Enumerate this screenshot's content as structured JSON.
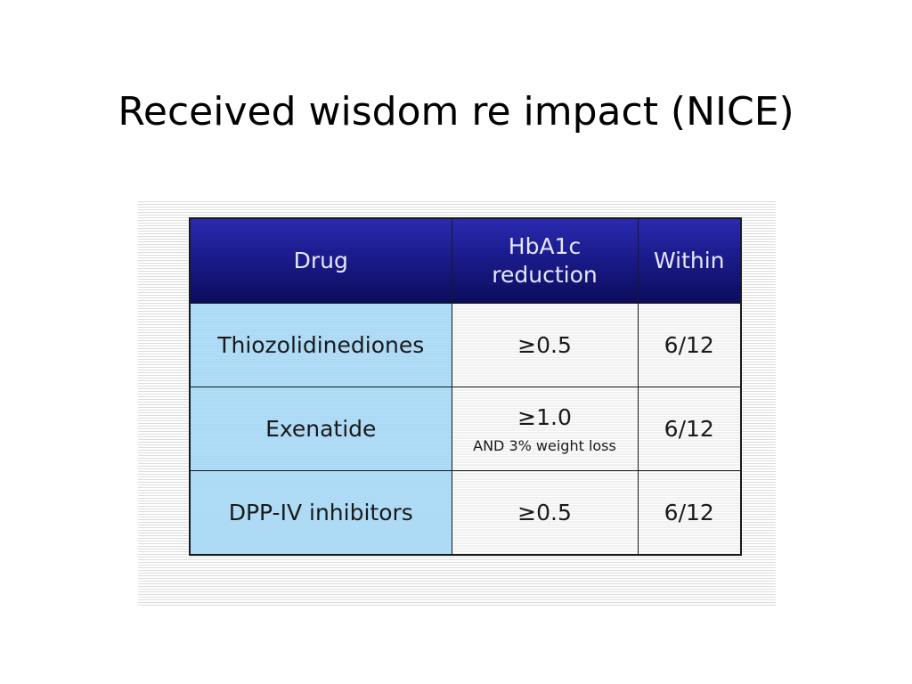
{
  "slide": {
    "title": "Received wisdom re impact (NICE)"
  },
  "table": {
    "headers": {
      "drug": "Drug",
      "hba1c_line1": "HbA1c",
      "hba1c_line2": "reduction",
      "within": "Within"
    },
    "rows": [
      {
        "drug": "Thiozolidinediones",
        "hba1c": "≥0.5",
        "hba1c_note": "",
        "within": "6/12"
      },
      {
        "drug": "Exenatide",
        "hba1c": "≥1.0",
        "hba1c_note": "AND 3% weight loss",
        "within": "6/12"
      },
      {
        "drug": "DPP-IV inhibitors",
        "hba1c": "≥0.5",
        "hba1c_note": "",
        "within": "6/12"
      }
    ]
  },
  "colors": {
    "header_bg": "#1b1b8c",
    "header_text": "#e6e6ff",
    "drug_col_bg": "#a9d8f5",
    "value_bg": "#f4f4f4"
  }
}
